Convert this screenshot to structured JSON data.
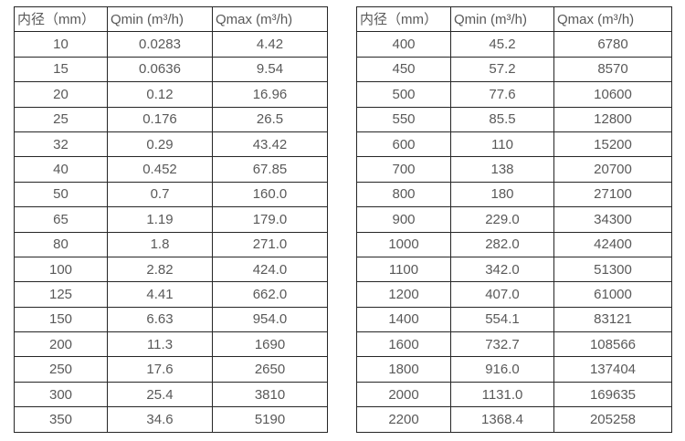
{
  "text_color": "#595959",
  "border_color": "#262626",
  "tables": [
    {
      "headers": [
        "内径（mm）",
        "Qmin (m³/h)",
        "Qmax (m³/h)"
      ],
      "rows": [
        [
          "10",
          "0.0283",
          "4.42"
        ],
        [
          "15",
          "0.0636",
          "9.54"
        ],
        [
          "20",
          "0.12",
          "16.96"
        ],
        [
          "25",
          "0.176",
          "26.5"
        ],
        [
          "32",
          "0.29",
          "43.42"
        ],
        [
          "40",
          "0.452",
          "67.85"
        ],
        [
          "50",
          "0.7",
          "160.0"
        ],
        [
          "65",
          "1.19",
          "179.0"
        ],
        [
          "80",
          "1.8",
          "271.0"
        ],
        [
          "100",
          "2.82",
          "424.0"
        ],
        [
          "125",
          "4.41",
          "662.0"
        ],
        [
          "150",
          "6.63",
          "954.0"
        ],
        [
          "200",
          "11.3",
          "1690"
        ],
        [
          "250",
          "17.6",
          "2650"
        ],
        [
          "300",
          "25.4",
          "3810"
        ],
        [
          "350",
          "34.6",
          "5190"
        ]
      ]
    },
    {
      "headers": [
        "内径（mm）",
        "Qmin (m³/h)",
        "Qmax (m³/h)"
      ],
      "rows": [
        [
          "400",
          "45.2",
          "6780"
        ],
        [
          "450",
          "57.2",
          "8570"
        ],
        [
          "500",
          "77.6",
          "10600"
        ],
        [
          "550",
          "85.5",
          "12800"
        ],
        [
          "600",
          "110",
          "15200"
        ],
        [
          "700",
          "138",
          "20700"
        ],
        [
          "800",
          "180",
          "27100"
        ],
        [
          "900",
          "229.0",
          "34300"
        ],
        [
          "1000",
          "282.0",
          "42400"
        ],
        [
          "1100",
          "342.0",
          "51300"
        ],
        [
          "1200",
          "407.0",
          "61000"
        ],
        [
          "1400",
          "554.1",
          "83121"
        ],
        [
          "1600",
          "732.7",
          "108566"
        ],
        [
          "1800",
          "916.0",
          "137404"
        ],
        [
          "2000",
          "1131.0",
          "169635"
        ],
        [
          "2200",
          "1368.4",
          "205258"
        ]
      ]
    }
  ]
}
